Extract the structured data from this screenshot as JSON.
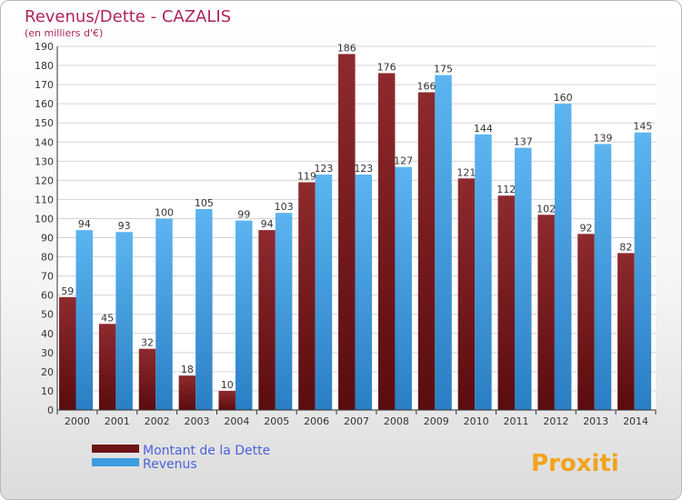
{
  "chart_data": {
    "type": "bar",
    "title": "Revenus/Dette - CAZALIS",
    "subtitle": "(en milliers d'€)",
    "categories": [
      "2000",
      "2001",
      "2002",
      "2003",
      "2004",
      "2005",
      "2006",
      "2007",
      "2008",
      "2009",
      "2010",
      "2011",
      "2012",
      "2013",
      "2014"
    ],
    "series": [
      {
        "name": "Montant de la Dette",
        "color": "#7a1b1f",
        "values": [
          59,
          45,
          32,
          18,
          10,
          94,
          119,
          186,
          176,
          166,
          121,
          112,
          102,
          92,
          82
        ]
      },
      {
        "name": "Revenus",
        "color": "#3d9be0",
        "values": [
          94,
          93,
          100,
          105,
          99,
          103,
          123,
          123,
          127,
          175,
          144,
          137,
          160,
          139,
          145
        ]
      }
    ],
    "ylim": [
      0,
      190
    ],
    "ytick_step": 10,
    "grid": true,
    "legend_position": "bottom-left"
  },
  "logo_text": "Proxiti"
}
